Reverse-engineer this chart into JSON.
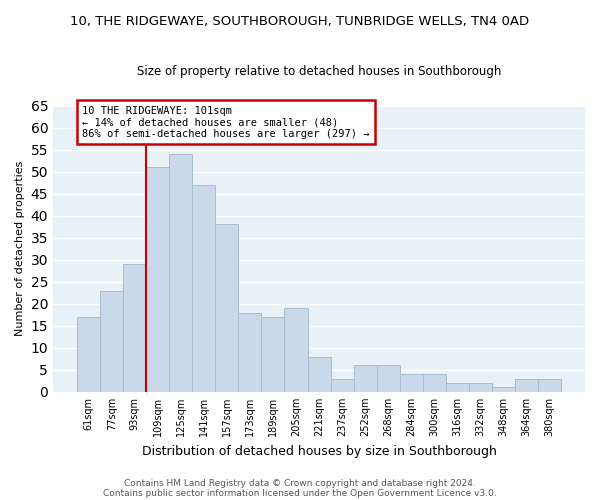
{
  "title1": "10, THE RIDGEWAYE, SOUTHBOROUGH, TUNBRIDGE WELLS, TN4 0AD",
  "title2": "Size of property relative to detached houses in Southborough",
  "xlabel": "Distribution of detached houses by size in Southborough",
  "ylabel": "Number of detached properties",
  "bar_color": "#c9d9ea",
  "bar_edgecolor": "#a8becd",
  "bin_labels": [
    "61sqm",
    "77sqm",
    "93sqm",
    "109sqm",
    "125sqm",
    "141sqm",
    "157sqm",
    "173sqm",
    "189sqm",
    "205sqm",
    "221sqm",
    "237sqm",
    "252sqm",
    "268sqm",
    "284sqm",
    "300sqm",
    "316sqm",
    "332sqm",
    "348sqm",
    "364sqm",
    "380sqm"
  ],
  "bar_heights": [
    17,
    23,
    29,
    51,
    54,
    47,
    38,
    18,
    17,
    19,
    8,
    3,
    6,
    6,
    4,
    4,
    2,
    2,
    1,
    3,
    3
  ],
  "ylim": [
    0,
    65
  ],
  "yticks": [
    0,
    5,
    10,
    15,
    20,
    25,
    30,
    35,
    40,
    45,
    50,
    55,
    60,
    65
  ],
  "vline_index": 3,
  "vline_color": "#cc0000",
  "annotation_text": "10 THE RIDGEWAYE: 101sqm\n← 14% of detached houses are smaller (48)\n86% of semi-detached houses are larger (297) →",
  "annotation_box_color": "#ffffff",
  "annotation_box_edgecolor": "#cc0000",
  "footer1": "Contains HM Land Registry data © Crown copyright and database right 2024.",
  "footer2": "Contains public sector information licensed under the Open Government Licence v3.0.",
  "background_color": "#ffffff",
  "plot_background": "#e8f0f8",
  "grid_color": "#ffffff"
}
